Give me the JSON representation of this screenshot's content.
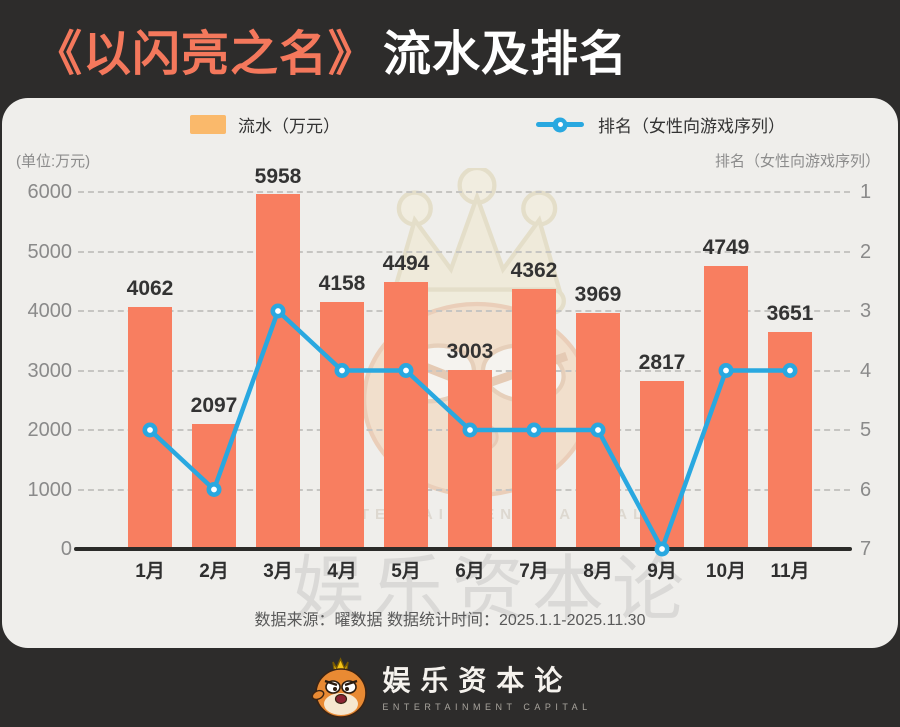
{
  "title": {
    "book": "《以闪亮之名》",
    "rest": "流水及排名"
  },
  "legend": {
    "bars": "流水（万元）",
    "line": "排名（女性向游戏序列）"
  },
  "axes": {
    "left_unit": "(单位:万元)",
    "right_unit": "排名（女性向游戏序列）",
    "left_ticks": [
      "6000",
      "5000",
      "4000",
      "3000",
      "2000",
      "1000",
      "0"
    ],
    "right_ticks": [
      "1",
      "2",
      "3",
      "4",
      "5",
      "6",
      "7"
    ]
  },
  "chart_data": {
    "type": "bar",
    "categories": [
      "1月",
      "2月",
      "3月",
      "4月",
      "5月",
      "6月",
      "7月",
      "8月",
      "9月",
      "10月",
      "11月"
    ],
    "series": [
      {
        "name": "流水（万元）",
        "type": "bar",
        "axis": "left",
        "values": [
          4062,
          2097,
          5958,
          4158,
          4494,
          3003,
          4362,
          3969,
          2817,
          4749,
          3651
        ]
      },
      {
        "name": "排名（女性向游戏序列）",
        "type": "line",
        "axis": "right",
        "values": [
          5,
          6,
          3,
          4,
          4,
          5,
          5,
          5,
          7,
          4,
          4
        ]
      }
    ],
    "title": "《以闪亮之名》流水及排名",
    "xlabel": "",
    "ylabel_left": "(单位:万元)",
    "ylabel_right": "排名（女性向游戏序列）",
    "left_axis": {
      "min": 0,
      "max": 6000,
      "step": 1000
    },
    "right_axis": {
      "min": 1,
      "max": 7,
      "step": 1,
      "inverted": true
    },
    "grid": "horizontal dashed",
    "legend_position": "top"
  },
  "source_line": "数据来源：曜数据  数据统计时间：2025.1.1-2025.11.30",
  "watermark": {
    "brand": "娱乐资本论",
    "brand_en": "ENTERTAINMENT CAPITAL"
  },
  "footer": {
    "brand": "娱乐资本论",
    "brand_en": "ENTERTAINMENT CAPITAL"
  },
  "colors": {
    "background": "#2D2C2B",
    "card": "#EFEEEB",
    "bar": "#F87E60",
    "line": "#29A8E0",
    "legend_swatch": "#FAB96B",
    "title_accent": "#F4785C",
    "title_rest": "#FFFFFF",
    "axis_text": "#8A8A8A",
    "label_text": "#333333"
  }
}
